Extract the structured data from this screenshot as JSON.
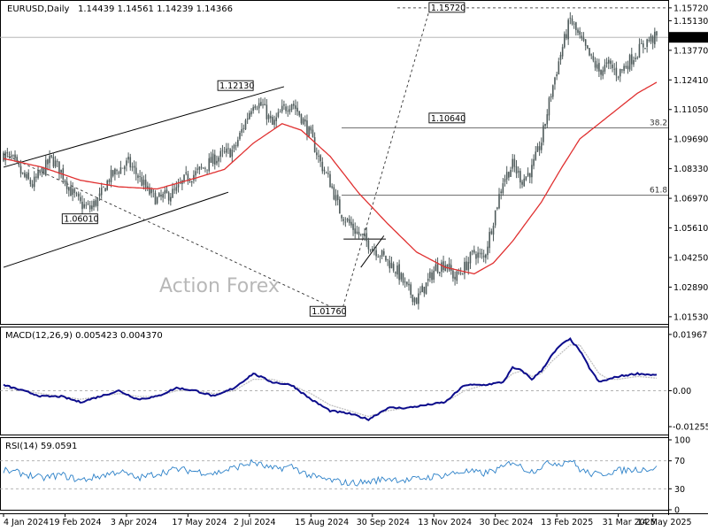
{
  "header": {
    "symbol": "EURUSD,Daily",
    "ohlc": "1.14439 1.14561 1.14239 1.14366",
    "macd_label": "MACD(12,26,9) 0.005423 0.004370",
    "rsi_label": "RSI(14) 59.0591"
  },
  "watermark": "Action Forex",
  "colors": {
    "candle": "#4f5b5b",
    "sma": "#e03030",
    "macd": "#0c0c8c",
    "signal": "#c0c0c0",
    "rsi": "#2b80c8",
    "trendline": "#000000",
    "axis": "#000000"
  },
  "chart_data": [
    {
      "type": "candlestick",
      "name": "price",
      "y_axis_ticks": [
        "1.15720",
        "1.15130",
        "1.13770",
        "1.12410",
        "1.11050",
        "1.09690",
        "1.08330",
        "1.06970",
        "1.05610",
        "1.04250",
        "1.02890",
        "1.01530"
      ],
      "current_price": "1.14366",
      "ylim": [
        1.012,
        1.16
      ],
      "price_keypoints": [
        [
          0,
          1.09
        ],
        [
          5,
          1.087
        ],
        [
          10,
          1.08
        ],
        [
          15,
          1.076
        ],
        [
          20,
          1.082
        ],
        [
          25,
          1.088
        ],
        [
          30,
          1.082
        ],
        [
          35,
          1.073
        ],
        [
          40,
          1.067
        ],
        [
          45,
          1.065
        ],
        [
          50,
          1.07
        ],
        [
          55,
          1.079
        ],
        [
          60,
          1.083
        ],
        [
          65,
          1.086
        ],
        [
          70,
          1.08
        ],
        [
          75,
          1.073
        ],
        [
          80,
          1.069
        ],
        [
          85,
          1.071
        ],
        [
          90,
          1.073
        ],
        [
          95,
          1.079
        ],
        [
          100,
          1.081
        ],
        [
          110,
          1.088
        ],
        [
          115,
          1.09
        ],
        [
          120,
          1.092
        ],
        [
          125,
          1.103
        ],
        [
          130,
          1.114
        ],
        [
          135,
          1.112
        ],
        [
          140,
          1.103
        ],
        [
          145,
          1.11
        ],
        [
          150,
          1.114
        ],
        [
          155,
          1.107
        ],
        [
          160,
          1.098
        ],
        [
          165,
          1.086
        ],
        [
          170,
          1.077
        ],
        [
          175,
          1.064
        ],
        [
          180,
          1.058
        ],
        [
          185,
          1.053
        ],
        [
          190,
          1.049
        ],
        [
          195,
          1.045
        ],
        [
          200,
          1.041
        ],
        [
          205,
          1.036
        ],
        [
          210,
          1.028
        ],
        [
          215,
          1.023
        ],
        [
          220,
          1.03
        ],
        [
          225,
          1.038
        ],
        [
          230,
          1.04
        ],
        [
          235,
          1.033
        ],
        [
          240,
          1.038
        ],
        [
          245,
          1.045
        ],
        [
          250,
          1.042
        ],
        [
          255,
          1.06
        ],
        [
          260,
          1.078
        ],
        [
          265,
          1.085
        ],
        [
          270,
          1.078
        ],
        [
          275,
          1.083
        ],
        [
          280,
          1.096
        ],
        [
          285,
          1.118
        ],
        [
          290,
          1.136
        ],
        [
          295,
          1.152
        ],
        [
          300,
          1.143
        ],
        [
          305,
          1.135
        ],
        [
          310,
          1.128
        ],
        [
          315,
          1.131
        ],
        [
          320,
          1.127
        ],
        [
          325,
          1.132
        ],
        [
          330,
          1.137
        ],
        [
          335,
          1.142
        ],
        [
          340,
          1.1437
        ]
      ],
      "sma_keypoints": [
        [
          0,
          1.088
        ],
        [
          20,
          1.084
        ],
        [
          40,
          1.078
        ],
        [
          60,
          1.075
        ],
        [
          80,
          1.074
        ],
        [
          100,
          1.079
        ],
        [
          115,
          1.083
        ],
        [
          130,
          1.095
        ],
        [
          145,
          1.104
        ],
        [
          155,
          1.101
        ],
        [
          170,
          1.089
        ],
        [
          185,
          1.072
        ],
        [
          200,
          1.058
        ],
        [
          215,
          1.045
        ],
        [
          230,
          1.038
        ],
        [
          245,
          1.035
        ],
        [
          255,
          1.04
        ],
        [
          265,
          1.05
        ],
        [
          280,
          1.068
        ],
        [
          290,
          1.083
        ],
        [
          300,
          1.097
        ],
        [
          310,
          1.104
        ],
        [
          320,
          1.111
        ],
        [
          330,
          1.118
        ],
        [
          340,
          1.123
        ]
      ],
      "annotations": [
        {
          "label": "1.15720",
          "value": 1.1572
        },
        {
          "label": "1.12130",
          "value": 1.1213
        },
        {
          "label": "1.10640",
          "value": 1.1064
        },
        {
          "label": "1.06010",
          "value": 1.0601
        },
        {
          "label": "1.01760",
          "value": 1.0176
        }
      ],
      "fibonacci": [
        {
          "label": "38.2",
          "value": 1.102
        },
        {
          "label": "61.8",
          "value": 1.0711
        }
      ]
    },
    {
      "type": "line",
      "name": "MACD(12,26,9)",
      "y_axis_ticks": [
        "0.019679",
        "0.00",
        "-0.012552"
      ],
      "ylim": [
        -0.015,
        0.0215
      ],
      "macd_keypoints": [
        [
          0,
          0.002
        ],
        [
          10,
          0.0
        ],
        [
          20,
          -0.002
        ],
        [
          30,
          -0.002
        ],
        [
          40,
          -0.004
        ],
        [
          50,
          -0.002
        ],
        [
          60,
          0.0
        ],
        [
          70,
          -0.003
        ],
        [
          80,
          -0.002
        ],
        [
          90,
          0.001
        ],
        [
          100,
          0.0
        ],
        [
          110,
          -0.002
        ],
        [
          120,
          0.001
        ],
        [
          130,
          0.006
        ],
        [
          140,
          0.003
        ],
        [
          150,
          0.002
        ],
        [
          160,
          -0.003
        ],
        [
          170,
          -0.007
        ],
        [
          180,
          -0.008
        ],
        [
          190,
          -0.01
        ],
        [
          200,
          -0.006
        ],
        [
          210,
          -0.006
        ],
        [
          220,
          -0.005
        ],
        [
          230,
          -0.004
        ],
        [
          240,
          0.002
        ],
        [
          250,
          0.002
        ],
        [
          260,
          0.003
        ],
        [
          265,
          0.008
        ],
        [
          270,
          0.007
        ],
        [
          275,
          0.004
        ],
        [
          280,
          0.007
        ],
        [
          285,
          0.012
        ],
        [
          290,
          0.016
        ],
        [
          295,
          0.018
        ],
        [
          300,
          0.014
        ],
        [
          305,
          0.008
        ],
        [
          310,
          0.003
        ],
        [
          315,
          0.004
        ],
        [
          320,
          0.005
        ],
        [
          330,
          0.006
        ],
        [
          340,
          0.0054
        ]
      ],
      "signal_keypoints": [
        [
          0,
          0.001
        ],
        [
          10,
          0.0
        ],
        [
          20,
          -0.001
        ],
        [
          30,
          -0.002
        ],
        [
          40,
          -0.003
        ],
        [
          50,
          -0.002
        ],
        [
          60,
          -0.001
        ],
        [
          70,
          -0.002
        ],
        [
          80,
          -0.002
        ],
        [
          90,
          0.0
        ],
        [
          100,
          0.0
        ],
        [
          110,
          -0.001
        ],
        [
          120,
          0.0
        ],
        [
          130,
          0.004
        ],
        [
          140,
          0.004
        ],
        [
          150,
          0.002
        ],
        [
          160,
          -0.001
        ],
        [
          170,
          -0.005
        ],
        [
          180,
          -0.007
        ],
        [
          190,
          -0.009
        ],
        [
          200,
          -0.007
        ],
        [
          210,
          -0.006
        ],
        [
          220,
          -0.005
        ],
        [
          230,
          -0.004
        ],
        [
          240,
          0.0
        ],
        [
          250,
          0.002
        ],
        [
          260,
          0.003
        ],
        [
          265,
          0.006
        ],
        [
          270,
          0.007
        ],
        [
          275,
          0.005
        ],
        [
          280,
          0.006
        ],
        [
          285,
          0.01
        ],
        [
          290,
          0.013
        ],
        [
          295,
          0.016
        ],
        [
          300,
          0.016
        ],
        [
          305,
          0.011
        ],
        [
          310,
          0.006
        ],
        [
          315,
          0.004
        ],
        [
          320,
          0.004
        ],
        [
          330,
          0.005
        ],
        [
          340,
          0.0044
        ]
      ]
    },
    {
      "type": "line",
      "name": "RSI(14)",
      "y_axis_ticks": [
        "100",
        "70",
        "30",
        "0"
      ],
      "ylim": [
        0,
        100
      ],
      "levels": [
        70,
        30
      ],
      "rsi_keypoints": [
        [
          0,
          56
        ],
        [
          10,
          52
        ],
        [
          20,
          45
        ],
        [
          30,
          50
        ],
        [
          40,
          42
        ],
        [
          50,
          48
        ],
        [
          60,
          55
        ],
        [
          70,
          45
        ],
        [
          80,
          52
        ],
        [
          90,
          58
        ],
        [
          100,
          55
        ],
        [
          110,
          52
        ],
        [
          120,
          60
        ],
        [
          130,
          68
        ],
        [
          140,
          58
        ],
        [
          150,
          62
        ],
        [
          160,
          48
        ],
        [
          170,
          42
        ],
        [
          180,
          38
        ],
        [
          190,
          40
        ],
        [
          200,
          45
        ],
        [
          210,
          42
        ],
        [
          220,
          46
        ],
        [
          230,
          50
        ],
        [
          240,
          55
        ],
        [
          250,
          52
        ],
        [
          260,
          60
        ],
        [
          265,
          70
        ],
        [
          270,
          60
        ],
        [
          275,
          55
        ],
        [
          280,
          62
        ],
        [
          285,
          68
        ],
        [
          290,
          66
        ],
        [
          295,
          72
        ],
        [
          300,
          58
        ],
        [
          305,
          52
        ],
        [
          310,
          50
        ],
        [
          315,
          54
        ],
        [
          320,
          56
        ],
        [
          330,
          58
        ],
        [
          340,
          59
        ]
      ]
    }
  ],
  "x_axis_labels": [
    "4 Jan 2024",
    "19 Feb 2024",
    "3 Apr 2024",
    "17 May 2024",
    "2 Jul 2024",
    "15 Aug 2024",
    "30 Sep 2024",
    "13 Nov 2024",
    "30 Dec 2024",
    "13 Feb 2025",
    "31 Mar 2025",
    "14 May 2025"
  ]
}
